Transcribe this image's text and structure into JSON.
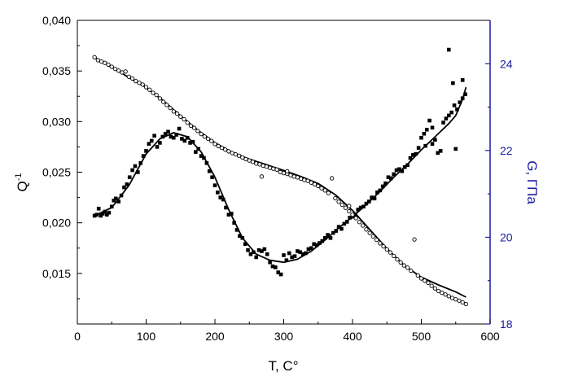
{
  "chart_data": {
    "type": "scatter",
    "title": "",
    "xlabel": "T, C°",
    "ylabel_left": "Q",
    "ylabel_left_sup": "-1",
    "ylabel_right": "G, ГПа",
    "xlim": [
      0,
      600
    ],
    "ylim_left": [
      0.01,
      0.04
    ],
    "ylim_right": [
      18,
      25
    ],
    "grid": false,
    "legend": "none",
    "x_ticks": [
      "0",
      "100",
      "200",
      "300",
      "400",
      "500",
      "600"
    ],
    "y_left_ticks": [
      "0,015",
      "0,020",
      "0,025",
      "0,030",
      "0,035",
      "0,040"
    ],
    "y_right_ticks": [
      "18",
      "20",
      "22",
      "24"
    ],
    "colors": {
      "left_axis": "#000000",
      "right_axis": "#1a1aa0",
      "marks": "#000000"
    },
    "series": [
      {
        "axis": "left",
        "marker": "filled-square",
        "points": [
          [
            25,
            0.0207
          ],
          [
            28,
            0.0208
          ],
          [
            31,
            0.0214
          ],
          [
            34,
            0.0207
          ],
          [
            37,
            0.0209
          ],
          [
            40,
            0.0211
          ],
          [
            43,
            0.0208
          ],
          [
            46,
            0.021
          ],
          [
            50,
            0.0216
          ],
          [
            53,
            0.0222
          ],
          [
            56,
            0.0224
          ],
          [
            60,
            0.0221
          ],
          [
            64,
            0.0227
          ],
          [
            68,
            0.0235
          ],
          [
            72,
            0.0238
          ],
          [
            76,
            0.0245
          ],
          [
            80,
            0.0252
          ],
          [
            84,
            0.0256
          ],
          [
            88,
            0.025
          ],
          [
            92,
            0.0259
          ],
          [
            96,
            0.0266
          ],
          [
            100,
            0.0271
          ],
          [
            104,
            0.0278
          ],
          [
            108,
            0.0281
          ],
          [
            112,
            0.0286
          ],
          [
            116,
            0.0275
          ],
          [
            120,
            0.0279
          ],
          [
            124,
            0.0285
          ],
          [
            128,
            0.0288
          ],
          [
            132,
            0.029
          ],
          [
            136,
            0.0285
          ],
          [
            140,
            0.0284
          ],
          [
            144,
            0.0287
          ],
          [
            148,
            0.0293
          ],
          [
            152,
            0.0283
          ],
          [
            156,
            0.0281
          ],
          [
            160,
            0.0284
          ],
          [
            164,
            0.0279
          ],
          [
            168,
            0.028
          ],
          [
            172,
            0.027
          ],
          [
            176,
            0.0273
          ],
          [
            180,
            0.0266
          ],
          [
            184,
            0.0264
          ],
          [
            188,
            0.0259
          ],
          [
            192,
            0.0251
          ],
          [
            196,
            0.0245
          ],
          [
            200,
            0.0237
          ],
          [
            204,
            0.023
          ],
          [
            208,
            0.0225
          ],
          [
            212,
            0.0223
          ],
          [
            216,
            0.0215
          ],
          [
            220,
            0.0208
          ],
          [
            224,
            0.0209
          ],
          [
            228,
            0.02
          ],
          [
            232,
            0.0193
          ],
          [
            236,
            0.0187
          ],
          [
            240,
            0.0185
          ],
          [
            244,
            0.0179
          ],
          [
            248,
            0.0173
          ],
          [
            252,
            0.0169
          ],
          [
            256,
            0.0171
          ],
          [
            260,
            0.0166
          ],
          [
            264,
            0.0173
          ],
          [
            268,
            0.0172
          ],
          [
            272,
            0.0174
          ],
          [
            276,
            0.0169
          ],
          [
            280,
            0.0161
          ],
          [
            284,
            0.0157
          ],
          [
            288,
            0.0156
          ],
          [
            292,
            0.0151
          ],
          [
            296,
            0.0149
          ],
          [
            300,
            0.0168
          ],
          [
            304,
            0.0163
          ],
          [
            308,
            0.017
          ],
          [
            312,
            0.0166
          ],
          [
            316,
            0.0167
          ],
          [
            320,
            0.0172
          ],
          [
            324,
            0.0171
          ],
          [
            328,
            0.0169
          ],
          [
            332,
            0.017
          ],
          [
            336,
            0.0174
          ],
          [
            340,
            0.0175
          ],
          [
            344,
            0.0179
          ],
          [
            348,
            0.0178
          ],
          [
            352,
            0.018
          ],
          [
            356,
            0.0182
          ],
          [
            360,
            0.0185
          ],
          [
            364,
            0.0188
          ],
          [
            368,
            0.0185
          ],
          [
            372,
            0.019
          ],
          [
            376,
            0.0192
          ],
          [
            380,
            0.0196
          ],
          [
            384,
            0.0194
          ],
          [
            388,
            0.0199
          ],
          [
            392,
            0.0201
          ],
          [
            396,
            0.0205
          ],
          [
            400,
            0.0206
          ],
          [
            404,
            0.0208
          ],
          [
            408,
            0.0213
          ],
          [
            412,
            0.0215
          ],
          [
            416,
            0.0216
          ],
          [
            420,
            0.0219
          ],
          [
            424,
            0.0221
          ],
          [
            428,
            0.0225
          ],
          [
            432,
            0.0224
          ],
          [
            436,
            0.023
          ],
          [
            440,
            0.0232
          ],
          [
            444,
            0.0236
          ],
          [
            448,
            0.0239
          ],
          [
            452,
            0.0245
          ],
          [
            456,
            0.0244
          ],
          [
            460,
            0.0248
          ],
          [
            464,
            0.0252
          ],
          [
            468,
            0.0253
          ],
          [
            472,
            0.0251
          ],
          [
            476,
            0.0255
          ],
          [
            480,
            0.0257
          ],
          [
            484,
            0.0264
          ],
          [
            488,
            0.0267
          ],
          [
            492,
            0.0268
          ],
          [
            496,
            0.0274
          ],
          [
            500,
            0.0284
          ],
          [
            504,
            0.0288
          ],
          [
            508,
            0.0292
          ],
          [
            512,
            0.0301
          ],
          [
            516,
            0.0294
          ],
          [
            520,
            0.0282
          ],
          [
            524,
            0.0269
          ],
          [
            528,
            0.0271
          ],
          [
            532,
            0.0299
          ],
          [
            536,
            0.0303
          ],
          [
            540,
            0.0306
          ],
          [
            544,
            0.0309
          ],
          [
            548,
            0.0316
          ],
          [
            552,
            0.0312
          ],
          [
            556,
            0.0319
          ],
          [
            560,
            0.0323
          ],
          [
            564,
            0.0327
          ],
          [
            540,
            0.0371
          ],
          [
            546,
            0.0338
          ],
          [
            550,
            0.0273
          ],
          [
            560,
            0.0341
          ],
          [
            506,
            0.0276
          ],
          [
            516,
            0.0278
          ]
        ],
        "fit": [
          [
            25,
            0.0207
          ],
          [
            50,
            0.0215
          ],
          [
            75,
            0.0237
          ],
          [
            100,
            0.0268
          ],
          [
            120,
            0.0283
          ],
          [
            140,
            0.0289
          ],
          [
            160,
            0.0285
          ],
          [
            180,
            0.027
          ],
          [
            200,
            0.0245
          ],
          [
            220,
            0.0213
          ],
          [
            240,
            0.0185
          ],
          [
            260,
            0.0169
          ],
          [
            280,
            0.0163
          ],
          [
            300,
            0.0161
          ],
          [
            320,
            0.0164
          ],
          [
            340,
            0.0172
          ],
          [
            360,
            0.0183
          ],
          [
            380,
            0.0195
          ],
          [
            400,
            0.0206
          ],
          [
            420,
            0.0218
          ],
          [
            440,
            0.0231
          ],
          [
            460,
            0.0245
          ],
          [
            480,
            0.0258
          ],
          [
            500,
            0.0272
          ],
          [
            520,
            0.0285
          ],
          [
            540,
            0.0298
          ],
          [
            550,
            0.0306
          ],
          [
            560,
            0.0322
          ],
          [
            565,
            0.0334
          ]
        ]
      },
      {
        "axis": "right",
        "marker": "open-circle",
        "points": [
          [
            25,
            24.15
          ],
          [
            30,
            24.08
          ],
          [
            35,
            24.05
          ],
          [
            40,
            24.02
          ],
          [
            45,
            23.98
          ],
          [
            50,
            23.93
          ],
          [
            55,
            23.88
          ],
          [
            60,
            23.84
          ],
          [
            65,
            23.8
          ],
          [
            70,
            23.82
          ],
          [
            75,
            23.7
          ],
          [
            80,
            23.66
          ],
          [
            85,
            23.6
          ],
          [
            90,
            23.56
          ],
          [
            95,
            23.52
          ],
          [
            100,
            23.46
          ],
          [
            105,
            23.4
          ],
          [
            110,
            23.33
          ],
          [
            115,
            23.28
          ],
          [
            120,
            23.2
          ],
          [
            125,
            23.12
          ],
          [
            130,
            23.05
          ],
          [
            135,
            22.98
          ],
          [
            140,
            22.9
          ],
          [
            145,
            22.85
          ],
          [
            150,
            22.78
          ],
          [
            155,
            22.72
          ],
          [
            160,
            22.64
          ],
          [
            165,
            22.57
          ],
          [
            170,
            22.52
          ],
          [
            175,
            22.45
          ],
          [
            180,
            22.38
          ],
          [
            185,
            22.32
          ],
          [
            190,
            22.27
          ],
          [
            195,
            22.22
          ],
          [
            200,
            22.15
          ],
          [
            205,
            22.1
          ],
          [
            210,
            22.06
          ],
          [
            215,
            22.02
          ],
          [
            220,
            21.98
          ],
          [
            225,
            21.94
          ],
          [
            230,
            21.91
          ],
          [
            235,
            21.88
          ],
          [
            240,
            21.84
          ],
          [
            245,
            21.8
          ],
          [
            250,
            21.77
          ],
          [
            255,
            21.74
          ],
          [
            260,
            21.7
          ],
          [
            265,
            21.68
          ],
          [
            270,
            21.65
          ],
          [
            275,
            21.63
          ],
          [
            280,
            21.6
          ],
          [
            285,
            21.58
          ],
          [
            290,
            21.56
          ],
          [
            295,
            21.5
          ],
          [
            300,
            21.48
          ],
          [
            305,
            21.46
          ],
          [
            310,
            21.43
          ],
          [
            315,
            21.4
          ],
          [
            320,
            21.38
          ],
          [
            325,
            21.35
          ],
          [
            330,
            21.32
          ],
          [
            335,
            21.3
          ],
          [
            340,
            21.26
          ],
          [
            345,
            21.22
          ],
          [
            350,
            21.18
          ],
          [
            355,
            21.13
          ],
          [
            360,
            21.08
          ],
          [
            365,
            21.02
          ],
          [
            370,
            21.36
          ],
          [
            375,
            20.9
          ],
          [
            380,
            20.82
          ],
          [
            385,
            20.75
          ],
          [
            390,
            20.68
          ],
          [
            395,
            20.6
          ],
          [
            400,
            20.52
          ],
          [
            405,
            20.44
          ],
          [
            410,
            20.35
          ],
          [
            415,
            20.27
          ],
          [
            420,
            20.18
          ],
          [
            425,
            20.1
          ],
          [
            430,
            20.02
          ],
          [
            435,
            19.94
          ],
          [
            440,
            19.86
          ],
          [
            445,
            19.79
          ],
          [
            450,
            19.72
          ],
          [
            455,
            19.65
          ],
          [
            460,
            19.57
          ],
          [
            465,
            19.49
          ],
          [
            470,
            19.42
          ],
          [
            475,
            19.35
          ],
          [
            480,
            19.3
          ],
          [
            485,
            19.23
          ],
          [
            490,
            19.95
          ],
          [
            495,
            19.12
          ],
          [
            500,
            19.05
          ],
          [
            505,
            19.0
          ],
          [
            510,
            18.95
          ],
          [
            515,
            18.88
          ],
          [
            520,
            18.82
          ],
          [
            525,
            18.76
          ],
          [
            530,
            18.72
          ],
          [
            535,
            18.68
          ],
          [
            540,
            18.64
          ],
          [
            545,
            18.6
          ],
          [
            550,
            18.57
          ],
          [
            555,
            18.54
          ],
          [
            560,
            18.5
          ],
          [
            565,
            18.46
          ],
          [
            268,
            21.4
          ],
          [
            305,
            21.52
          ],
          [
            395,
            20.72
          ]
        ],
        "fit": [
          [
            25,
            24.15
          ],
          [
            50,
            23.92
          ],
          [
            75,
            23.68
          ],
          [
            100,
            23.45
          ],
          [
            125,
            23.15
          ],
          [
            150,
            22.8
          ],
          [
            175,
            22.47
          ],
          [
            200,
            22.18
          ],
          [
            225,
            21.96
          ],
          [
            250,
            21.8
          ],
          [
            275,
            21.67
          ],
          [
            300,
            21.54
          ],
          [
            325,
            21.4
          ],
          [
            350,
            21.24
          ],
          [
            375,
            20.98
          ],
          [
            400,
            20.62
          ],
          [
            425,
            20.18
          ],
          [
            450,
            19.74
          ],
          [
            475,
            19.35
          ],
          [
            500,
            19.08
          ],
          [
            525,
            18.9
          ],
          [
            550,
            18.74
          ],
          [
            565,
            18.62
          ]
        ]
      }
    ]
  }
}
